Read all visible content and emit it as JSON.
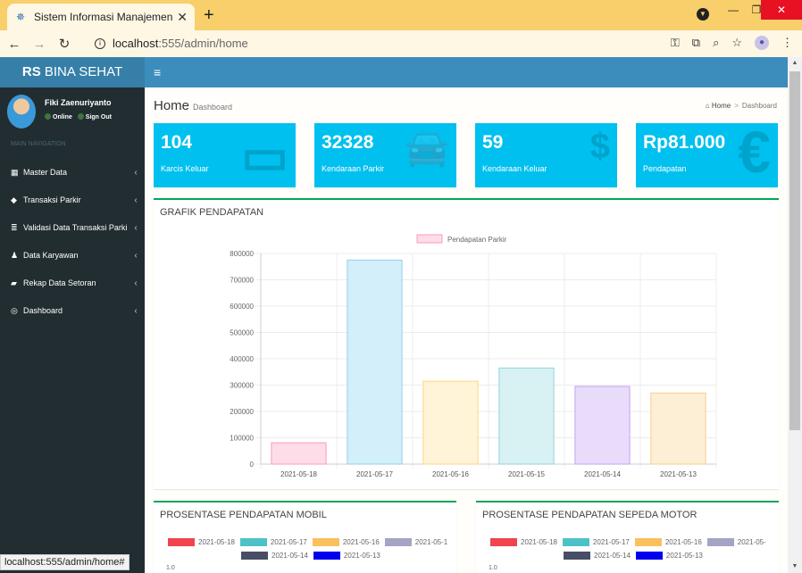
{
  "browser": {
    "tab_title": "Sistem Informasi Manajemen RS",
    "url_host": "localhost",
    "url_rest": ":555/admin/home",
    "status_url": "localhost:555/admin/home#"
  },
  "header": {
    "logo_bold": "RS",
    "logo_rest": " BINA SEHAT",
    "toggle": "≡"
  },
  "user": {
    "name": "Fiki Zaenuriyanto",
    "status": "Online",
    "signout": "Sign Out"
  },
  "sidebar": {
    "header": "MAIN NAVIGATION",
    "items": [
      {
        "label": "Master Data",
        "icon": "▦"
      },
      {
        "label": "Transaksi Parkir",
        "icon": "◆"
      },
      {
        "label": "Validasi Data Transaksi Parkir",
        "icon": "≣"
      },
      {
        "label": "Data Karyawan",
        "icon": "♟"
      },
      {
        "label": "Rekap Data Setoran",
        "icon": "▰"
      },
      {
        "label": "Dashboard",
        "icon": "◎"
      }
    ]
  },
  "page": {
    "title": "Home",
    "subtitle": "Dashboard",
    "breadcrumb_home": "Home",
    "breadcrumb_current": "Dashboard"
  },
  "stats": [
    {
      "value": "104",
      "label": "Karcis Keluar",
      "icon": "card-icon"
    },
    {
      "value": "32328",
      "label": "Kendaraan Parkir",
      "icon": "car-icon"
    },
    {
      "value": "59",
      "label": "Kendaraan Keluar",
      "icon": "money-icon"
    },
    {
      "value": "Rp81.000",
      "label": "Pendapatan",
      "icon": "euro-icon"
    }
  ],
  "chart_data": [
    {
      "type": "bar",
      "title": "GRAFIK PENDAPATAN",
      "categories": [
        "2021-05-18",
        "2021-05-17",
        "2021-05-16",
        "2021-05-15",
        "2021-05-14",
        "2021-05-13"
      ],
      "series": [
        {
          "name": "Pendapatan Parkir",
          "values": [
            81000,
            775000,
            315000,
            365000,
            295000,
            270000
          ]
        }
      ],
      "ylim": [
        0,
        800000
      ],
      "yticks": [
        0,
        100000,
        200000,
        300000,
        400000,
        500000,
        600000,
        700000,
        800000
      ],
      "bar_fills": [
        "#ffdde8",
        "#d3effa",
        "#fff3d8",
        "#d8f1f3",
        "#e9dcfb",
        "#fdefd6"
      ],
      "bar_strokes": [
        "#ff99b4",
        "#8fd0ee",
        "#ffd680",
        "#90d4df",
        "#c0a3f4",
        "#f7ce88"
      ],
      "grid": true,
      "legend": "top"
    }
  ],
  "pie_mobil": {
    "title": "PROSENTASE PENDAPATAN MOBIL",
    "legend": [
      {
        "label": "2021-05-18",
        "color": "#f0444f"
      },
      {
        "label": "2021-05-17",
        "color": "#4cc2c8"
      },
      {
        "label": "2021-05-16",
        "color": "#fcbf5e"
      },
      {
        "label": "2021-05-1",
        "color": "#a5a4c4"
      },
      {
        "label": "2021-05-14",
        "color": "#474e66"
      },
      {
        "label": "2021-05-13",
        "color": "#0000ee"
      }
    ],
    "axis_tick": "1.0"
  },
  "pie_motor": {
    "title": "PROSENTASE PENDAPATAN SEPEDA MOTOR",
    "legend": [
      {
        "label": "2021-05-18",
        "color": "#f0444f"
      },
      {
        "label": "2021-05-17",
        "color": "#4cc2c8"
      },
      {
        "label": "2021-05-16",
        "color": "#fcbf5e"
      },
      {
        "label": "2021-05-",
        "color": "#a5a4c4"
      },
      {
        "label": "2021-05-14",
        "color": "#474e66"
      },
      {
        "label": "2021-05-13",
        "color": "#0000ee"
      }
    ],
    "axis_tick": "1.0"
  }
}
